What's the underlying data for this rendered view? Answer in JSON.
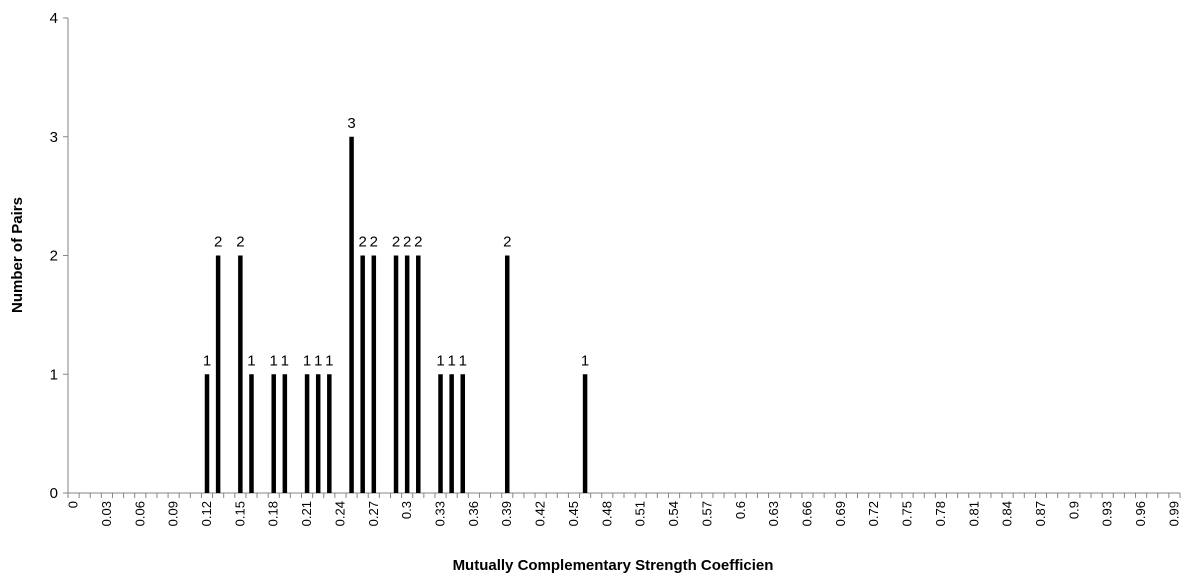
{
  "chart_data": {
    "type": "bar",
    "title": "",
    "xlabel": "Mutually Complementary Strength Coefficien",
    "ylabel": "Number of Pairs",
    "ylim": [
      0,
      4
    ],
    "yticks": [
      0,
      1,
      2,
      3,
      4
    ],
    "grid": false,
    "legend": "none",
    "bar_color": "#000000",
    "x": [
      "0",
      "0.01",
      "0.02",
      "0.03",
      "0.04",
      "0.05",
      "0.06",
      "0.07",
      "0.08",
      "0.09",
      "0.1",
      "0.11",
      "0.12",
      "0.13",
      "0.14",
      "0.15",
      "0.16",
      "0.17",
      "0.18",
      "0.19",
      "0.2",
      "0.21",
      "0.22",
      "0.23",
      "0.24",
      "0.25",
      "0.26",
      "0.27",
      "0.28",
      "0.29",
      "0.3",
      "0.31",
      "0.32",
      "0.33",
      "0.34",
      "0.35",
      "0.36",
      "0.37",
      "0.38",
      "0.39",
      "0.4",
      "0.41",
      "0.42",
      "0.43",
      "0.44",
      "0.45",
      "0.46",
      "0.47",
      "0.48",
      "0.49",
      "0.5",
      "0.51",
      "0.52",
      "0.53",
      "0.54",
      "0.55",
      "0.56",
      "0.57",
      "0.58",
      "0.59",
      "0.6",
      "0.61",
      "0.62",
      "0.63",
      "0.64",
      "0.65",
      "0.66",
      "0.67",
      "0.68",
      "0.69",
      "0.7",
      "0.71",
      "0.72",
      "0.73",
      "0.74",
      "0.75",
      "0.76",
      "0.77",
      "0.78",
      "0.79",
      "0.8",
      "0.81",
      "0.82",
      "0.83",
      "0.84",
      "0.85",
      "0.86",
      "0.87",
      "0.88",
      "0.89",
      "0.9",
      "0.91",
      "0.92",
      "0.93",
      "0.94",
      "0.95",
      "0.96",
      "0.97",
      "0.98",
      "0.99"
    ],
    "tick_labels": [
      "0",
      "0.03",
      "0.06",
      "0.09",
      "0.12",
      "0.15",
      "0.18",
      "0.21",
      "0.24",
      "0.27",
      "0.3",
      "0.33",
      "0.36",
      "0.39",
      "0.42",
      "0.45",
      "0.48",
      "0.51",
      "0.54",
      "0.57",
      "0.6",
      "0.63",
      "0.66",
      "0.69",
      "0.72",
      "0.75",
      "0.78",
      "0.81",
      "0.84",
      "0.87",
      "0.9",
      "0.93",
      "0.96",
      "0.99"
    ],
    "bars": [
      {
        "x": "0.12",
        "value": 1
      },
      {
        "x": "0.13",
        "value": 2
      },
      {
        "x": "0.15",
        "value": 2
      },
      {
        "x": "0.16",
        "value": 1
      },
      {
        "x": "0.18",
        "value": 1
      },
      {
        "x": "0.19",
        "value": 1
      },
      {
        "x": "0.21",
        "value": 1
      },
      {
        "x": "0.22",
        "value": 1
      },
      {
        "x": "0.23",
        "value": 1
      },
      {
        "x": "0.25",
        "value": 3
      },
      {
        "x": "0.26",
        "value": 2
      },
      {
        "x": "0.27",
        "value": 2
      },
      {
        "x": "0.29",
        "value": 2
      },
      {
        "x": "0.3",
        "value": 2
      },
      {
        "x": "0.31",
        "value": 2
      },
      {
        "x": "0.33",
        "value": 1
      },
      {
        "x": "0.34",
        "value": 1
      },
      {
        "x": "0.35",
        "value": 1
      },
      {
        "x": "0.39",
        "value": 2
      },
      {
        "x": "0.46",
        "value": 1
      }
    ]
  }
}
